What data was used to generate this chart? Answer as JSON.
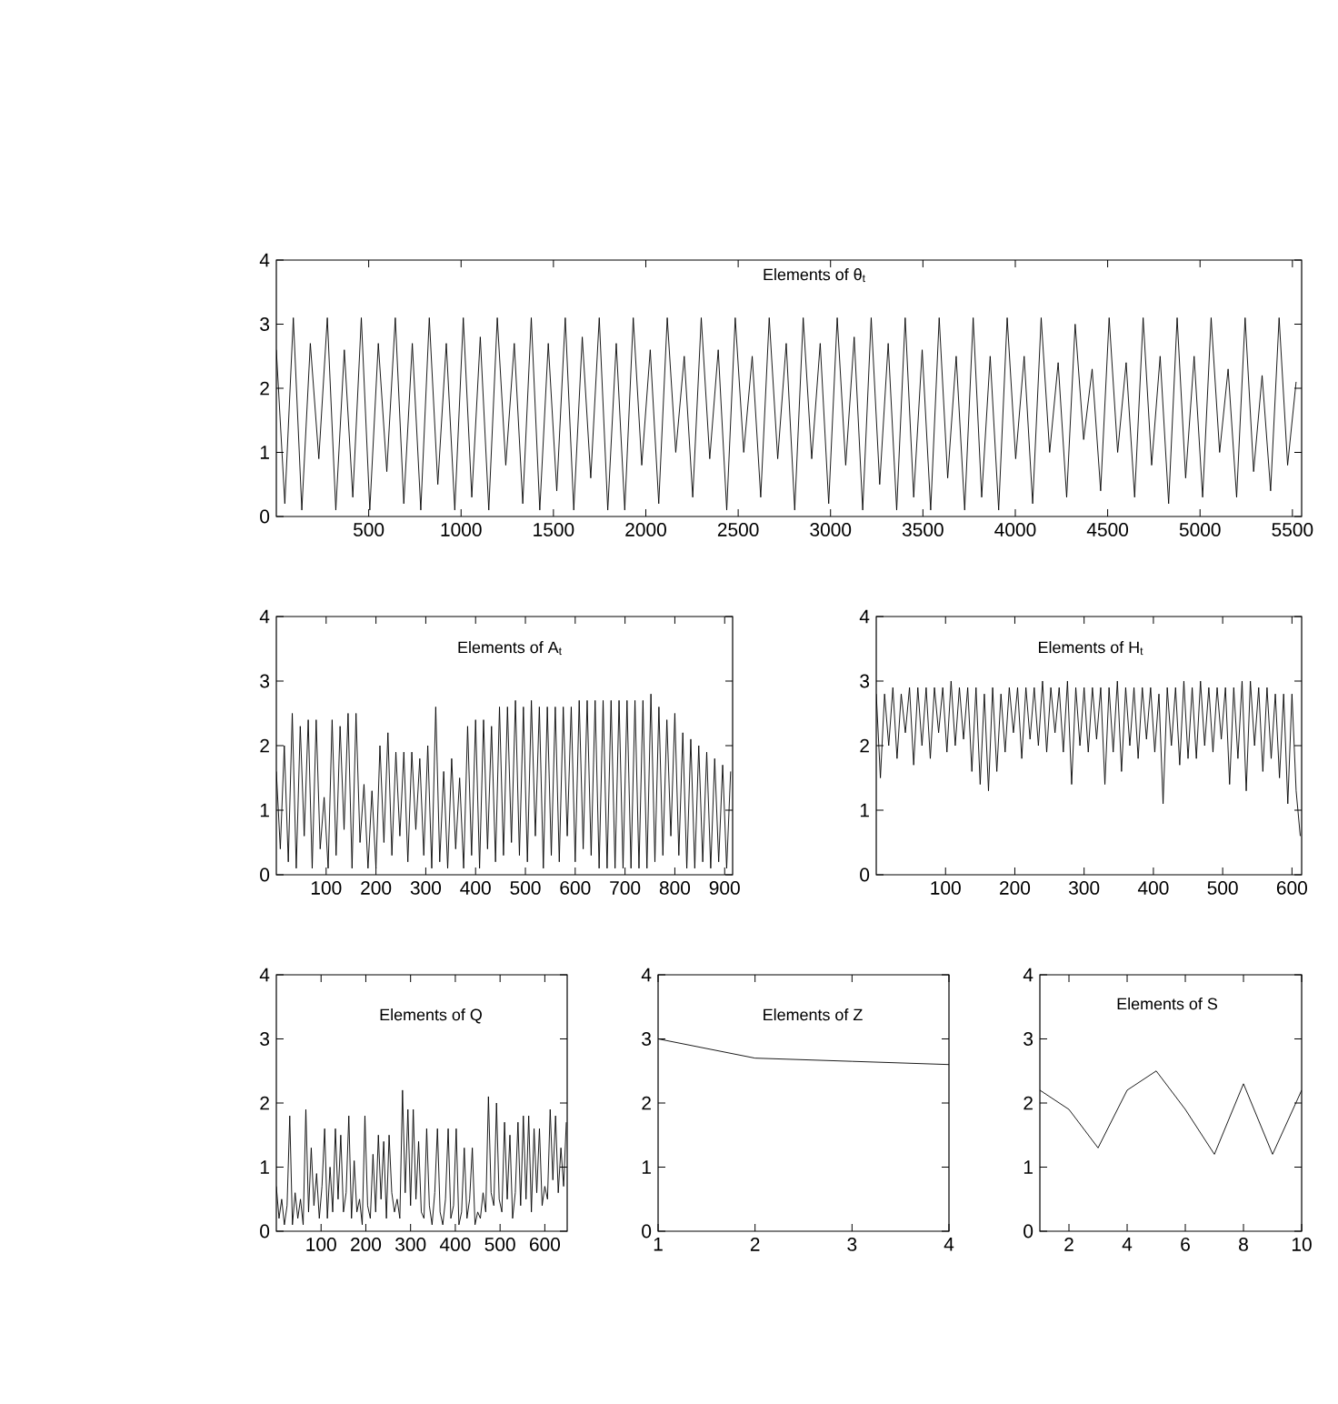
{
  "chart_data": [
    {
      "type": "line",
      "title": "Elements of θ$_{t}$",
      "color": "#000000",
      "xlim": [
        0,
        5550
      ],
      "ylim": [
        0,
        4
      ],
      "xticks": [
        500,
        1000,
        1500,
        2000,
        2500,
        3000,
        3500,
        4000,
        4500,
        5000,
        5500
      ],
      "yticks": [
        0,
        1,
        2,
        3,
        4
      ],
      "x": [
        0,
        46,
        92,
        138,
        184,
        230,
        276,
        322,
        368,
        414,
        460,
        506,
        552,
        598,
        644,
        690,
        736,
        782,
        828,
        874,
        920,
        966,
        1012,
        1058,
        1104,
        1150,
        1196,
        1242,
        1288,
        1334,
        1380,
        1426,
        1472,
        1518,
        1564,
        1610,
        1656,
        1702,
        1748,
        1794,
        1840,
        1886,
        1932,
        1978,
        2024,
        2070,
        2116,
        2162,
        2208,
        2254,
        2300,
        2346,
        2392,
        2438,
        2484,
        2530,
        2576,
        2622,
        2668,
        2714,
        2760,
        2806,
        2852,
        2898,
        2944,
        2990,
        3036,
        3082,
        3128,
        3174,
        3220,
        3266,
        3312,
        3358,
        3404,
        3450,
        3496,
        3542,
        3588,
        3634,
        3680,
        3726,
        3772,
        3818,
        3864,
        3910,
        3956,
        4002,
        4048,
        4094,
        4140,
        4186,
        4232,
        4278,
        4324,
        4370,
        4416,
        4462,
        4508,
        4554,
        4600,
        4646,
        4692,
        4738,
        4784,
        4830,
        4876,
        4922,
        4968,
        5014,
        5060,
        5106,
        5152,
        5198,
        5244,
        5290,
        5336,
        5382,
        5428,
        5474,
        5520
      ],
      "values": [
        2.6,
        0.2,
        3.1,
        0.1,
        2.7,
        0.9,
        3.1,
        0.1,
        2.6,
        0.3,
        3.1,
        0.1,
        2.7,
        0.7,
        3.1,
        0.2,
        2.7,
        0.1,
        3.1,
        0.5,
        2.7,
        0.1,
        3.1,
        0.3,
        2.8,
        0.1,
        3.1,
        0.8,
        2.7,
        0.2,
        3.1,
        0.1,
        2.7,
        0.4,
        3.1,
        0.1,
        2.8,
        0.6,
        3.1,
        0.1,
        2.7,
        0.1,
        3.1,
        0.8,
        2.6,
        0.2,
        3.1,
        1.0,
        2.5,
        0.3,
        3.1,
        0.9,
        2.6,
        0.1,
        3.1,
        1.0,
        2.5,
        0.3,
        3.1,
        0.9,
        2.7,
        0.1,
        3.1,
        0.9,
        2.7,
        0.2,
        3.1,
        0.8,
        2.8,
        0.1,
        3.1,
        0.5,
        2.7,
        0.1,
        3.1,
        0.3,
        2.6,
        0.1,
        3.1,
        0.6,
        2.5,
        0.1,
        3.1,
        0.3,
        2.5,
        0.1,
        3.1,
        0.9,
        2.5,
        0.2,
        3.1,
        1.0,
        2.4,
        0.3,
        3.0,
        1.2,
        2.3,
        0.4,
        3.1,
        1.0,
        2.4,
        0.3,
        3.1,
        0.8,
        2.5,
        0.2,
        3.1,
        0.6,
        2.5,
        0.3,
        3.1,
        1.0,
        2.3,
        0.3,
        3.1,
        0.7,
        2.2,
        0.4,
        3.1,
        0.8,
        2.1
      ]
    },
    {
      "type": "line",
      "title": "Elements of A$_{t}$",
      "color": "#000000",
      "xlim": [
        0,
        916
      ],
      "ylim": [
        0,
        4
      ],
      "xticks": [
        100,
        200,
        300,
        400,
        500,
        600,
        700,
        800,
        900
      ],
      "yticks": [
        0,
        1,
        2,
        3,
        4
      ],
      "x": [
        0,
        8,
        16,
        24,
        32,
        40,
        48,
        56,
        64,
        72,
        80,
        88,
        96,
        104,
        112,
        120,
        128,
        136,
        144,
        152,
        160,
        168,
        176,
        184,
        192,
        200,
        208,
        216,
        224,
        232,
        240,
        248,
        256,
        264,
        272,
        280,
        288,
        296,
        304,
        312,
        320,
        328,
        336,
        344,
        352,
        360,
        368,
        376,
        384,
        392,
        400,
        408,
        416,
        424,
        432,
        440,
        448,
        456,
        464,
        472,
        480,
        488,
        496,
        504,
        512,
        520,
        528,
        536,
        544,
        552,
        560,
        568,
        576,
        584,
        592,
        600,
        608,
        616,
        624,
        632,
        640,
        648,
        656,
        664,
        672,
        680,
        688,
        696,
        704,
        712,
        720,
        728,
        736,
        744,
        752,
        760,
        768,
        776,
        784,
        792,
        800,
        808,
        816,
        824,
        832,
        840,
        848,
        856,
        864,
        872,
        880,
        888,
        896,
        904,
        912
      ],
      "values": [
        1.6,
        0.4,
        2.0,
        0.2,
        2.5,
        0.1,
        2.3,
        0.6,
        2.4,
        0.1,
        2.4,
        0.4,
        1.2,
        0.1,
        2.4,
        0.3,
        2.3,
        0.7,
        2.5,
        0.1,
        2.5,
        0.5,
        1.4,
        0.1,
        1.3,
        0.1,
        2.0,
        0.5,
        2.2,
        0.3,
        1.9,
        0.6,
        1.9,
        0.2,
        1.9,
        0.7,
        1.8,
        0.3,
        2.0,
        0.1,
        2.6,
        0.2,
        1.6,
        0.1,
        1.8,
        0.4,
        1.5,
        0.1,
        2.3,
        0.3,
        2.4,
        0.1,
        2.4,
        0.4,
        2.3,
        0.2,
        2.6,
        0.3,
        2.6,
        0.5,
        2.7,
        0.3,
        2.6,
        0.2,
        2.7,
        0.6,
        2.6,
        0.1,
        2.6,
        0.3,
        2.6,
        0.2,
        2.6,
        0.6,
        2.6,
        0.2,
        2.7,
        0.4,
        2.7,
        0.3,
        2.7,
        0.1,
        2.7,
        0.1,
        2.7,
        0.1,
        2.7,
        0.1,
        2.7,
        0.1,
        2.7,
        0.1,
        2.7,
        0.1,
        2.8,
        0.2,
        2.6,
        0.3,
        2.4,
        0.6,
        2.5,
        0.3,
        2.2,
        0.1,
        2.1,
        0.1,
        2.0,
        0.2,
        1.9,
        0.1,
        1.8,
        0.2,
        1.7,
        0.1,
        1.6
      ]
    },
    {
      "type": "line",
      "title": "Elements of H$_{t}$",
      "color": "#000000",
      "xlim": [
        0,
        614
      ],
      "ylim": [
        0,
        4
      ],
      "xticks": [
        100,
        200,
        300,
        400,
        500,
        600
      ],
      "yticks": [
        0,
        1,
        2,
        3,
        4
      ],
      "x": [
        0,
        6,
        12,
        18,
        24,
        30,
        36,
        42,
        48,
        54,
        60,
        66,
        72,
        78,
        84,
        90,
        96,
        102,
        108,
        114,
        120,
        126,
        132,
        138,
        144,
        150,
        156,
        162,
        168,
        174,
        180,
        186,
        192,
        198,
        204,
        210,
        216,
        222,
        228,
        234,
        240,
        246,
        252,
        258,
        264,
        270,
        276,
        282,
        288,
        294,
        300,
        306,
        312,
        318,
        324,
        330,
        336,
        342,
        348,
        354,
        360,
        366,
        372,
        378,
        384,
        390,
        396,
        402,
        408,
        414,
        420,
        426,
        432,
        438,
        444,
        450,
        456,
        462,
        468,
        474,
        480,
        486,
        492,
        498,
        504,
        510,
        516,
        522,
        528,
        534,
        540,
        546,
        552,
        558,
        564,
        570,
        576,
        582,
        588,
        594,
        600,
        606,
        612
      ],
      "values": [
        2.8,
        1.5,
        2.8,
        2.0,
        2.9,
        1.8,
        2.8,
        2.2,
        2.9,
        1.7,
        2.9,
        2.0,
        2.9,
        1.8,
        2.9,
        2.2,
        2.9,
        1.9,
        3.0,
        2.0,
        2.9,
        2.1,
        2.9,
        1.6,
        2.9,
        1.4,
        2.8,
        1.3,
        2.9,
        1.6,
        2.8,
        1.9,
        2.9,
        2.2,
        2.9,
        1.8,
        2.9,
        2.1,
        2.9,
        2.0,
        3.0,
        1.9,
        2.9,
        2.2,
        2.9,
        1.9,
        3.0,
        1.4,
        2.9,
        2.0,
        2.9,
        1.9,
        2.9,
        2.1,
        2.9,
        1.4,
        2.9,
        1.9,
        3.0,
        1.6,
        2.9,
        2.0,
        2.9,
        1.8,
        2.9,
        2.1,
        2.9,
        1.9,
        2.8,
        1.1,
        2.9,
        2.0,
        2.9,
        1.7,
        3.0,
        1.8,
        2.9,
        1.8,
        3.0,
        2.0,
        2.9,
        1.9,
        2.9,
        2.1,
        2.9,
        1.4,
        2.9,
        1.8,
        3.0,
        1.3,
        3.0,
        2.0,
        2.9,
        1.6,
        2.9,
        1.8,
        2.8,
        1.5,
        2.8,
        1.1,
        2.8,
        1.3,
        0.6
      ]
    },
    {
      "type": "line",
      "title": "Elements of Q",
      "color": "#000000",
      "xlim": [
        0,
        650
      ],
      "ylim": [
        0,
        4
      ],
      "xticks": [
        100,
        200,
        300,
        400,
        500,
        600
      ],
      "yticks": [
        0,
        1,
        2,
        3,
        4
      ],
      "x": [
        0,
        6,
        12,
        18,
        24,
        30,
        36,
        42,
        48,
        54,
        60,
        66,
        72,
        78,
        84,
        90,
        96,
        102,
        108,
        114,
        120,
        126,
        132,
        138,
        144,
        150,
        156,
        162,
        168,
        174,
        180,
        186,
        192,
        198,
        204,
        210,
        216,
        222,
        228,
        234,
        240,
        246,
        252,
        258,
        264,
        270,
        276,
        282,
        288,
        294,
        300,
        306,
        312,
        318,
        324,
        330,
        336,
        342,
        348,
        354,
        360,
        366,
        372,
        378,
        384,
        390,
        396,
        402,
        408,
        414,
        420,
        426,
        432,
        438,
        444,
        450,
        456,
        462,
        468,
        474,
        480,
        486,
        492,
        498,
        504,
        510,
        516,
        522,
        528,
        534,
        540,
        546,
        552,
        558,
        564,
        570,
        576,
        582,
        588,
        594,
        600,
        606,
        612,
        618,
        624,
        630,
        636,
        642,
        648
      ],
      "values": [
        0.7,
        0.2,
        0.5,
        0.1,
        0.4,
        1.8,
        0.1,
        0.6,
        0.2,
        0.5,
        0.1,
        1.9,
        0.3,
        1.3,
        0.4,
        0.9,
        0.2,
        0.7,
        1.6,
        0.2,
        1.0,
        0.3,
        1.6,
        0.5,
        1.5,
        0.3,
        0.6,
        1.8,
        0.2,
        1.1,
        0.3,
        0.5,
        0.1,
        1.8,
        0.4,
        0.2,
        1.2,
        0.3,
        1.5,
        0.5,
        1.4,
        0.2,
        1.5,
        0.6,
        0.3,
        0.5,
        0.2,
        2.2,
        0.6,
        1.9,
        0.4,
        1.9,
        0.5,
        1.4,
        0.3,
        0.2,
        1.6,
        0.4,
        0.1,
        0.6,
        1.6,
        0.3,
        0.1,
        0.5,
        1.6,
        0.2,
        0.4,
        1.6,
        0.1,
        0.3,
        1.3,
        0.2,
        0.5,
        1.3,
        0.1,
        0.3,
        0.2,
        0.6,
        0.3,
        2.1,
        0.6,
        0.4,
        2.0,
        0.5,
        0.3,
        1.7,
        0.5,
        1.5,
        0.2,
        0.6,
        1.7,
        0.4,
        1.8,
        0.5,
        1.8,
        0.3,
        1.6,
        0.6,
        1.6,
        0.4,
        0.7,
        0.5,
        1.9,
        0.8,
        1.8,
        0.6,
        1.3,
        0.7,
        1.7
      ]
    },
    {
      "type": "line",
      "title": "Elements of Z",
      "color": "#000000",
      "xlim": [
        1,
        4
      ],
      "ylim": [
        0,
        4
      ],
      "xticks": [
        1,
        2,
        3,
        4
      ],
      "yticks": [
        0,
        1,
        2,
        3,
        4
      ],
      "x": [
        1,
        2,
        3,
        4
      ],
      "values": [
        3.0,
        2.7,
        2.65,
        2.6
      ]
    },
    {
      "type": "line",
      "title": "Elements of S",
      "color": "#000000",
      "xlim": [
        1,
        10
      ],
      "ylim": [
        0,
        4
      ],
      "xticks": [
        2,
        4,
        6,
        8,
        10
      ],
      "yticks": [
        0,
        1,
        2,
        3,
        4
      ],
      "x": [
        1,
        2,
        3,
        4,
        5,
        6,
        7,
        8,
        9,
        10
      ],
      "values": [
        2.2,
        1.9,
        1.3,
        2.2,
        2.5,
        1.9,
        1.2,
        2.3,
        1.2,
        2.2
      ]
    }
  ]
}
